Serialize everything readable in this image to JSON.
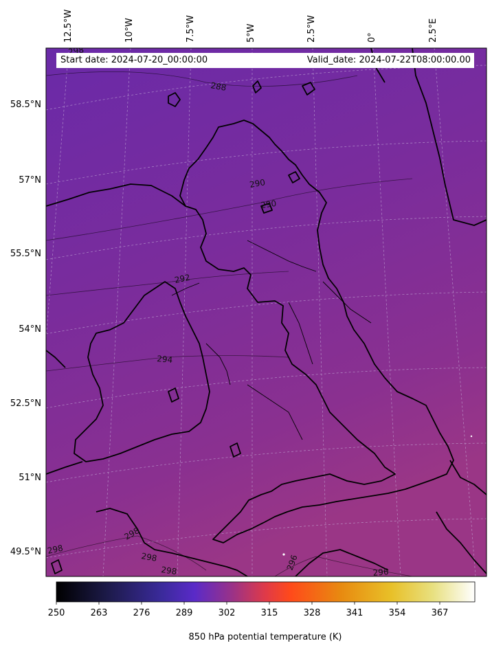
{
  "header": {
    "start_date": "Start date: 2024-07-20_00:00:00",
    "valid_date": "Valid_date: 2024-07-22T08:00:00.00"
  },
  "map": {
    "field": "850 hPa potential temperature",
    "units": "K",
    "longitude_labels": [
      "12.5°W",
      "10°W",
      "7.5°W",
      "5°W",
      "2.5°W",
      "0°",
      "2.5°E"
    ],
    "latitude_labels": [
      "58.5°N",
      "57°N",
      "55.5°N",
      "54°N",
      "52.5°N",
      "51°N",
      "49.5°N"
    ],
    "contour_labels": [
      "288",
      "290",
      "290",
      "292",
      "294",
      "296",
      "296",
      "298",
      "298",
      "298",
      "298",
      "298"
    ],
    "colors": {
      "north": "#6a2aa8",
      "central": "#7a2c9c",
      "south": "#943488",
      "coastline": "#000000",
      "gridline": "#c9b6dd"
    }
  },
  "colorbar": {
    "label": "850 hPa potential temperature (K)",
    "colormap": "CMRmap",
    "range": [
      250,
      378
    ],
    "ticks": [
      "250",
      "263",
      "276",
      "289",
      "302",
      "315",
      "328",
      "341",
      "354",
      "367"
    ]
  }
}
